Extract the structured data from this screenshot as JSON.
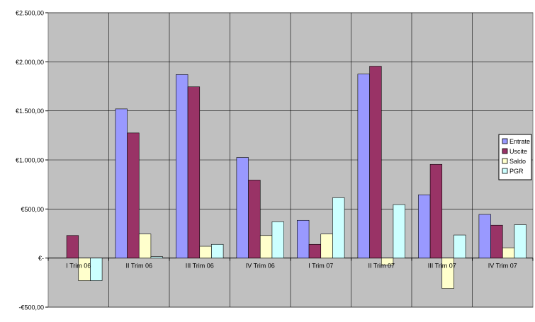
{
  "chart_data": {
    "type": "bar",
    "title": "",
    "xlabel": "",
    "ylabel": "",
    "categories": [
      "I Trim 06",
      "II Trim 06",
      "III Trim 06",
      "IV Trim 06",
      "I Trim 07",
      "II Trim 07",
      "III Trim 07",
      "IV Trim 07"
    ],
    "series": [
      {
        "name": "Entrate",
        "color": "#9999ff",
        "values": [
          0,
          1520,
          1870,
          1025,
          385,
          1875,
          645,
          445
        ]
      },
      {
        "name": "Uscite",
        "color": "#993366",
        "values": [
          230,
          1275,
          1745,
          795,
          140,
          1955,
          955,
          335
        ]
      },
      {
        "name": "Saldo",
        "color": "#ffffcc",
        "values": [
          -230,
          245,
          120,
          230,
          245,
          -70,
          -310,
          105
        ]
      },
      {
        "name": "PGR",
        "color": "#ccffff",
        "values": [
          -230,
          15,
          140,
          370,
          615,
          545,
          235,
          340
        ]
      }
    ],
    "ylim": [
      -500,
      2500
    ],
    "yticks": [
      2500,
      2000,
      1500,
      1000,
      500,
      0,
      -500
    ],
    "ytick_labels": [
      "€2.500,00",
      "€2.000,00",
      "€1.500,00",
      "€1.000,00",
      "€500,00",
      "€-",
      "-€500,00"
    ],
    "grid": true,
    "legend_position": "right",
    "plot_background": "#c0c0c0"
  }
}
